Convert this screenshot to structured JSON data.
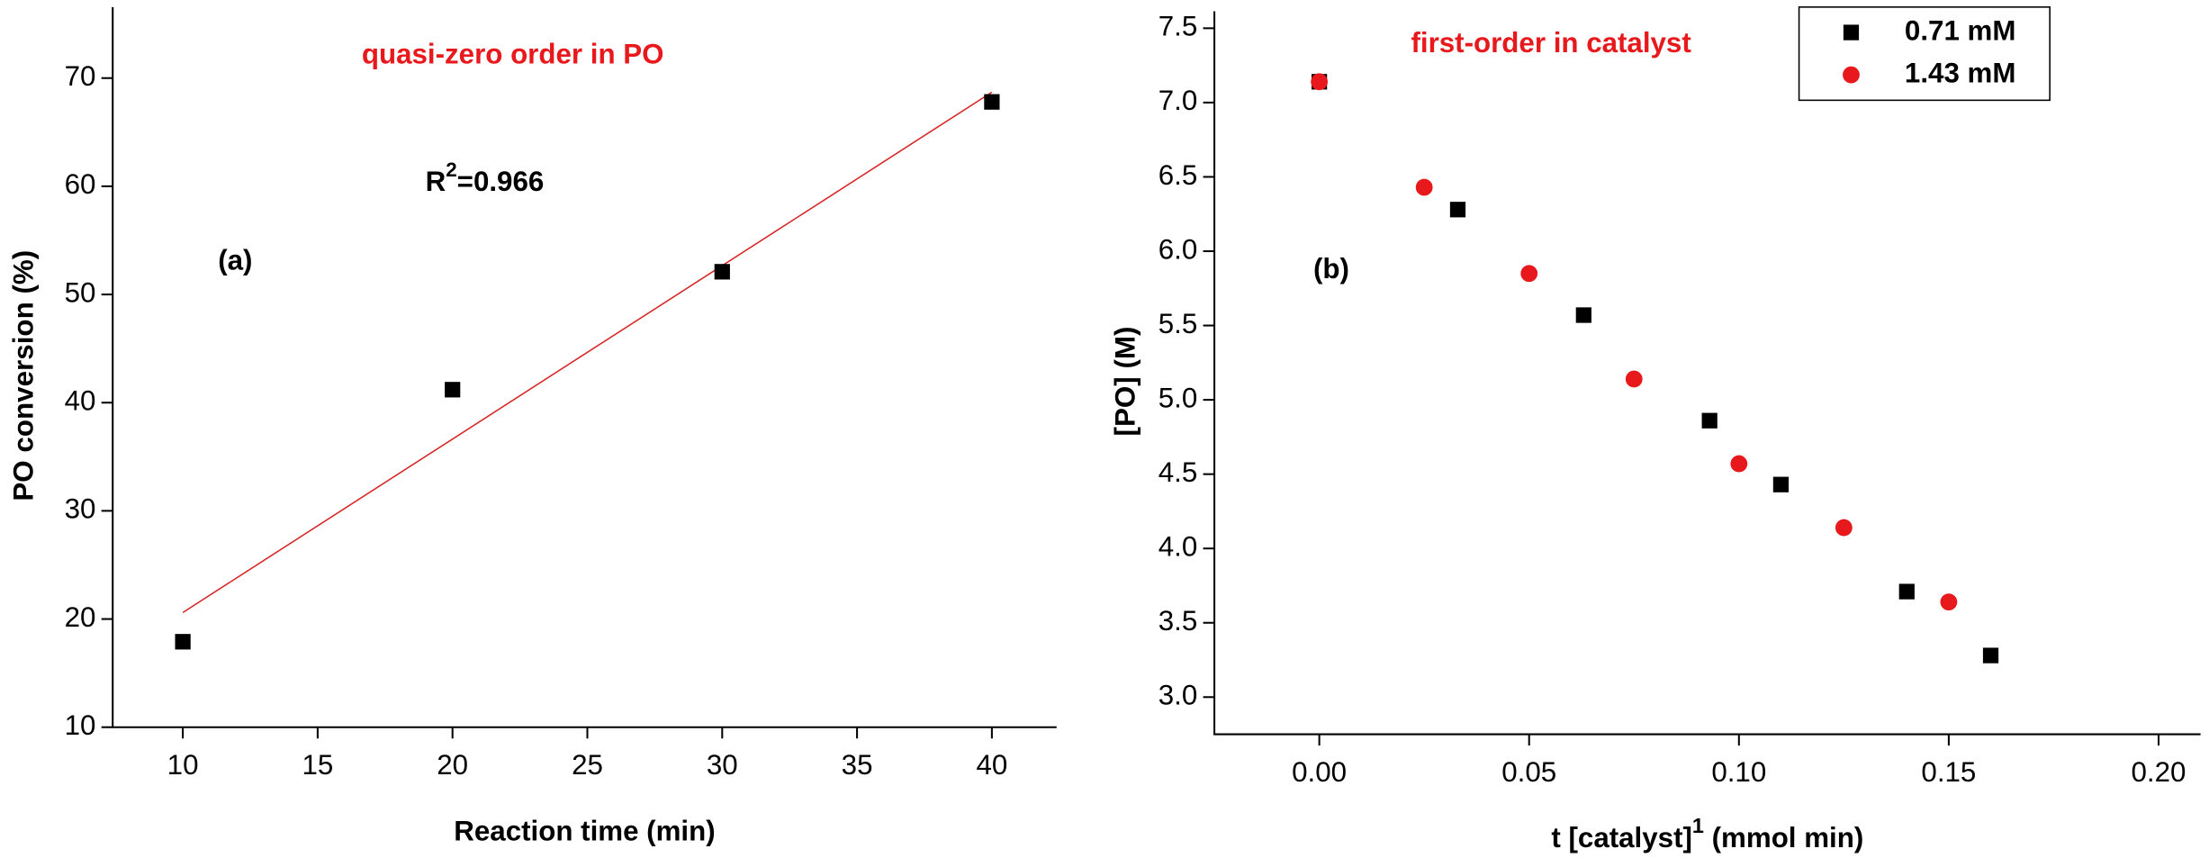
{
  "chart_data": [
    {
      "type": "scatter",
      "xlabel": "Reaction time (min)",
      "ylabel": "PO conversion (%)",
      "annotations": [
        {
          "text": "quasi-zero order in PO",
          "color": "#e8191c"
        },
        {
          "text": "(a)",
          "color": "#000000"
        },
        {
          "text": "R",
          "sup": "2",
          "after": "=0.966",
          "color": "#000000"
        }
      ],
      "series": [
        {
          "name": "conversion",
          "color": "#000000",
          "marker": "square",
          "x": [
            10,
            20,
            30,
            40
          ],
          "values": [
            17.9,
            41.2,
            52.1,
            67.8
          ]
        }
      ],
      "fit": {
        "color": "#d62728",
        "x": [
          10,
          40
        ],
        "y": [
          20.6,
          68.7
        ]
      },
      "xlim": [
        7.4,
        42.4
      ],
      "xticks": [
        10,
        15,
        20,
        25,
        30,
        35,
        40
      ],
      "ylim": [
        10,
        75
      ],
      "yticks": [
        10,
        20,
        30,
        40,
        50,
        60,
        70
      ],
      "legend": false
    },
    {
      "type": "scatter",
      "xlabel": {
        "text": "t [catalyst]",
        "sup": "1",
        "after": " (mmol min)"
      },
      "ylabel": "[PO] (M)",
      "annotations": [
        {
          "text": "first-order in catalyst",
          "color": "#e8191c"
        },
        {
          "text": "(b)",
          "color": "#000000"
        }
      ],
      "series": [
        {
          "name": "0.71 mM",
          "color": "#000000",
          "marker": "square",
          "x": [
            0,
            0.033,
            0.063,
            0.093,
            0.11,
            0.14,
            0.16
          ],
          "values": [
            7.14,
            6.28,
            5.57,
            4.86,
            4.43,
            3.71,
            3.28
          ]
        },
        {
          "name": "1.43 mM",
          "color": "#e8191c",
          "marker": "circle",
          "x": [
            0,
            0.025,
            0.05,
            0.075,
            0.1,
            0.125,
            0.15
          ],
          "values": [
            7.14,
            6.43,
            5.85,
            5.14,
            4.57,
            4.14,
            3.64
          ]
        }
      ],
      "xlim": [
        -0.025,
        0.21
      ],
      "xticks": [
        {
          "value": 0,
          "label": "0.00"
        },
        {
          "value": 0.05,
          "label": "0.05"
        },
        {
          "value": 0.1,
          "label": "0.10"
        },
        {
          "value": 0.15,
          "label": "0.15"
        },
        {
          "value": 0.2,
          "label": "0.20"
        }
      ],
      "ylim": [
        2.75,
        7.5
      ],
      "yticks": [
        {
          "value": 3,
          "label": "3.0"
        },
        {
          "value": 3.5,
          "label": "3.5"
        },
        {
          "value": 4,
          "label": "4.0"
        },
        {
          "value": 4.5,
          "label": "4.5"
        },
        {
          "value": 5,
          "label": "5.0"
        },
        {
          "value": 5.5,
          "label": "5.5"
        },
        {
          "value": 6,
          "label": "6.0"
        },
        {
          "value": 6.5,
          "label": "6.5"
        },
        {
          "value": 7,
          "label": "7.0"
        },
        {
          "value": 7.5,
          "label": "7.5"
        }
      ],
      "legend": "upper right"
    }
  ]
}
